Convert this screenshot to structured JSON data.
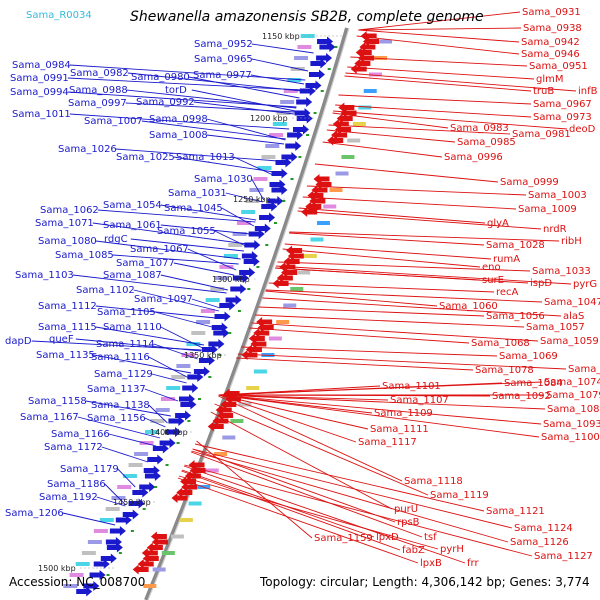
{
  "title": "Shewanella amazonensis SB2B, complete genome",
  "rna_label": "Sama_R0034",
  "footer": {
    "accession": "Accession: NC_008700",
    "summary": "Topology: circular; Length: 4,306,142 bp; Genes: 3,774"
  },
  "colors": {
    "reverse_strand": "#1a1acc",
    "forward_strand": "#dd1111",
    "backbone": "#8a8a8a",
    "rna": "#33bbdd"
  },
  "kbp_markers": [
    "1150 kbp",
    "1200 kbp",
    "1250 kbp",
    "1300 kbp",
    "1350 kbp",
    "1400 kbp",
    "1450 kbp",
    "1500 kbp"
  ],
  "left_labels": [
    "Sama_0952",
    "Sama_0965",
    "Sama_0984",
    "Sama_0982",
    "Sama_0980",
    "Sama_0977",
    "Sama_0991",
    "Sama_0994",
    "Sama_0988",
    "torD",
    "Sama_0997",
    "Sama_0992",
    "Sama_1011",
    "Sama_1007",
    "Sama_0998",
    "Sama_1008",
    "Sama_1026",
    "Sama_1025",
    "Sama_1013",
    "Sama_1030",
    "Sama_1031",
    "Sama_1062",
    "Sama_1054",
    "Sama_1045",
    "Sama_1071",
    "Sama_1061",
    "rdgC",
    "Sama_1055",
    "Sama_1080",
    "Sama_1067",
    "Sama_1085",
    "Sama_1077",
    "Sama_1087",
    "Sama_1103",
    "Sama_1102",
    "Sama_1097",
    "Sama_1112",
    "Sama_1105",
    "Sama_1115",
    "Sama_1110",
    "dapD",
    "queF",
    "Sama_1114",
    "Sama_1135",
    "Sama_1116",
    "Sama_1129",
    "Sama_1137",
    "Sama_1158",
    "Sama_1138",
    "Sama_1167",
    "Sama_1156",
    "Sama_1166",
    "Sama_1172",
    "Sama_1179",
    "Sama_1186",
    "Sama_1192",
    "Sama_1206"
  ],
  "right_labels": [
    "Sama_0931",
    "Sama_0938",
    "Sama_0942",
    "Sama_0946",
    "Sama_0951",
    "glmM",
    "truB",
    "infB",
    "Sama_0967",
    "Sama_0973",
    "Sama_0983",
    "deoD",
    "Sama_0981",
    "Sama_0985",
    "Sama_0996",
    "Sama_0999",
    "Sama_1003",
    "Sama_1009",
    "glyA",
    "nrdR",
    "ribH",
    "Sama_1028",
    "rumA",
    "eno",
    "Sama_1033",
    "surE",
    "ispD",
    "pyrG",
    "recA",
    "Sama_1047",
    "Sama_1060",
    "alaS",
    "Sama_1056",
    "Sama_1057",
    "Sama_1068",
    "Sama_1059",
    "Sama_1069",
    "Sama_1078",
    "Sama_1070",
    "Sama_1084",
    "Sama_1074",
    "Sama_1092",
    "Sama_1079",
    "Sama_1101",
    "Sama_1107",
    "Sama_1089",
    "Sama_1109",
    "Sama_1093",
    "Sama_1111",
    "Sama_1100",
    "Sama_1117",
    "Sama_1118",
    "Sama_1119",
    "purU",
    "Sama_1121",
    "rpsB",
    "Sama_1124",
    "tsf",
    "Sama_1126",
    "Sama_1159",
    "lpxD",
    "pyrH",
    "fabZ",
    "lpxB",
    "Sama_1127",
    "frr"
  ]
}
